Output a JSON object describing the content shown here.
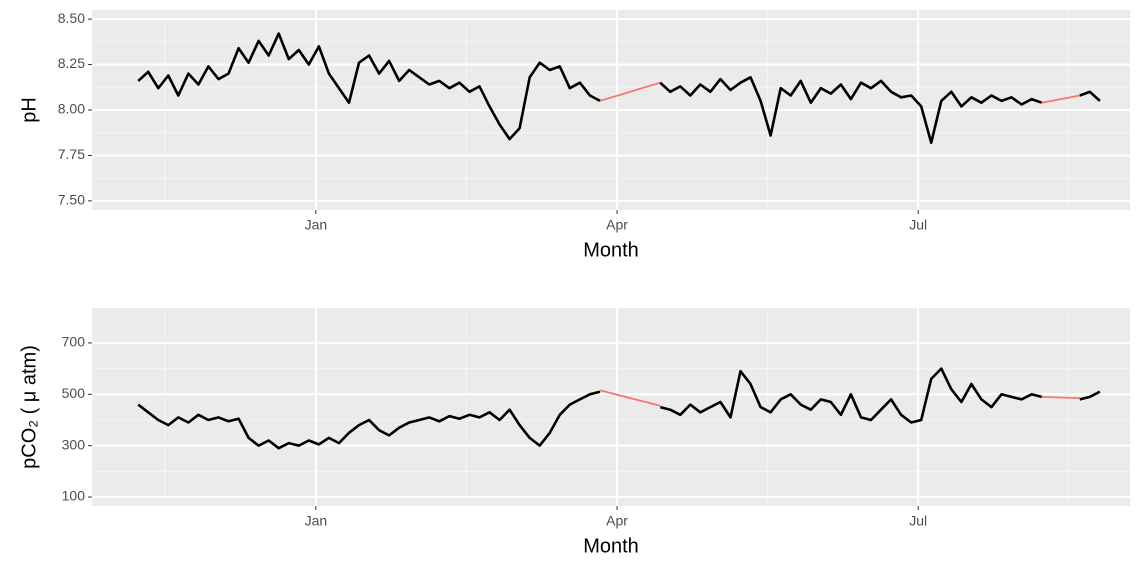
{
  "chart_data": [
    {
      "type": "line",
      "x_label": "Month",
      "y_label": "pH",
      "grid": true,
      "xlim": [
        -1.23,
        9.11
      ],
      "ylim": [
        7.45,
        8.55
      ],
      "xticks": [
        {
          "value": 1,
          "label": "Jan"
        },
        {
          "value": 4,
          "label": "Apr"
        },
        {
          "value": 7,
          "label": "Jul"
        }
      ],
      "yticks": [
        {
          "value": 7.5,
          "label": "7.50"
        },
        {
          "value": 7.75,
          "label": "7.75"
        },
        {
          "value": 8,
          "label": "8.00"
        },
        {
          "value": 8.25,
          "label": "8.25"
        },
        {
          "value": 8.5,
          "label": "8.50"
        }
      ],
      "series": [
        {
          "color": "#F8766D",
          "x": [
            3.83,
            4.43,
            6,
            8.23,
            8.61
          ],
          "values": [
            8.05,
            8.15,
            null,
            8.04,
            8.08
          ]
        },
        {
          "color": "#000000",
          "x": [
            -0.77,
            -0.67,
            -0.57,
            -0.47,
            -0.37,
            -0.27,
            -0.17,
            -0.07,
            0.03,
            0.13,
            0.23,
            0.33,
            0.43,
            0.53,
            0.63,
            0.73,
            0.83,
            0.93,
            1.03,
            1.13,
            1.23,
            1.33,
            1.43,
            1.53,
            1.63,
            1.73,
            1.83,
            1.93,
            2.03,
            2.13,
            2.23,
            2.33,
            2.43,
            2.53,
            2.63,
            2.73,
            2.83,
            2.93,
            3.03,
            3.13,
            3.23,
            3.33,
            3.43,
            3.53,
            3.63,
            3.73,
            3.83,
            4.0,
            4.43,
            4.53,
            4.63,
            4.73,
            4.83,
            4.93,
            5.03,
            5.13,
            5.23,
            5.33,
            5.43,
            5.53,
            5.63,
            5.73,
            5.83,
            5.93,
            6.03,
            6.13,
            6.23,
            6.33,
            6.43,
            6.53,
            6.63,
            6.73,
            6.83,
            6.93,
            7.03,
            7.13,
            7.23,
            7.33,
            7.43,
            7.53,
            7.63,
            7.73,
            7.83,
            7.93,
            8.03,
            8.13,
            8.23,
            8.4,
            8.61,
            8.71,
            8.81
          ],
          "values": [
            8.16,
            8.21,
            8.12,
            8.19,
            8.08,
            8.2,
            8.14,
            8.24,
            8.17,
            8.2,
            8.34,
            8.26,
            8.38,
            8.3,
            8.42,
            8.28,
            8.33,
            8.25,
            8.35,
            8.2,
            8.12,
            8.04,
            8.26,
            8.3,
            8.2,
            8.27,
            8.16,
            8.22,
            8.18,
            8.14,
            8.16,
            8.12,
            8.15,
            8.1,
            8.13,
            8.02,
            7.92,
            7.84,
            7.9,
            8.18,
            8.26,
            8.22,
            8.24,
            8.12,
            8.15,
            8.08,
            8.05,
            null,
            8.15,
            8.1,
            8.13,
            8.08,
            8.14,
            8.1,
            8.17,
            8.11,
            8.15,
            8.18,
            8.05,
            7.86,
            8.12,
            8.08,
            8.16,
            8.04,
            8.12,
            8.09,
            8.14,
            8.06,
            8.15,
            8.12,
            8.16,
            8.1,
            8.07,
            8.08,
            8.02,
            7.82,
            8.05,
            8.1,
            8.02,
            8.07,
            8.04,
            8.08,
            8.05,
            8.07,
            8.03,
            8.06,
            8.04,
            null,
            8.08,
            8.1,
            8.05
          ]
        }
      ]
    },
    {
      "type": "line",
      "x_label": "Month",
      "y_label": "pCO₂ ( μ atm)",
      "grid": true,
      "xlim": [
        -1.23,
        9.11
      ],
      "ylim": [
        65,
        836
      ],
      "xticks": [
        {
          "value": 1,
          "label": "Jan"
        },
        {
          "value": 4,
          "label": "Apr"
        },
        {
          "value": 7,
          "label": "Jul"
        }
      ],
      "yticks": [
        100,
        300,
        500,
        700
      ],
      "series": [
        {
          "color": "#F8766D",
          "x": [
            3.83,
            4.43,
            6,
            8.23,
            8.61
          ],
          "values": [
            515,
            455,
            null,
            490,
            485
          ]
        },
        {
          "color": "#000000",
          "x": [
            -0.77,
            -0.67,
            -0.57,
            -0.47,
            -0.37,
            -0.27,
            -0.17,
            -0.07,
            0.03,
            0.13,
            0.23,
            0.33,
            0.43,
            0.53,
            0.63,
            0.73,
            0.83,
            0.93,
            1.03,
            1.13,
            1.23,
            1.33,
            1.43,
            1.53,
            1.63,
            1.73,
            1.83,
            1.93,
            2.03,
            2.13,
            2.23,
            2.33,
            2.43,
            2.53,
            2.63,
            2.73,
            2.83,
            2.93,
            3.03,
            3.13,
            3.23,
            3.33,
            3.43,
            3.53,
            3.63,
            3.73,
            3.83,
            4.0,
            4.43,
            4.53,
            4.63,
            4.73,
            4.83,
            4.93,
            5.03,
            5.13,
            5.23,
            5.33,
            5.43,
            5.53,
            5.63,
            5.73,
            5.83,
            5.93,
            6.03,
            6.13,
            6.23,
            6.33,
            6.43,
            6.53,
            6.63,
            6.73,
            6.83,
            6.93,
            7.03,
            7.13,
            7.23,
            7.33,
            7.43,
            7.53,
            7.63,
            7.73,
            7.83,
            7.93,
            8.03,
            8.13,
            8.23,
            8.4,
            8.61,
            8.71,
            8.81
          ],
          "values": [
            460,
            430,
            400,
            380,
            410,
            390,
            420,
            400,
            410,
            395,
            405,
            330,
            300,
            320,
            290,
            310,
            300,
            320,
            305,
            330,
            310,
            350,
            380,
            400,
            360,
            340,
            370,
            390,
            400,
            410,
            395,
            415,
            405,
            420,
            410,
            430,
            400,
            440,
            380,
            330,
            300,
            350,
            420,
            460,
            480,
            500,
            510,
            null,
            450,
            440,
            420,
            460,
            430,
            450,
            470,
            410,
            590,
            540,
            450,
            430,
            480,
            500,
            460,
            440,
            480,
            470,
            420,
            500,
            410,
            400,
            440,
            480,
            420,
            390,
            400,
            560,
            600,
            520,
            470,
            540,
            480,
            450,
            500,
            490,
            480,
            500,
            490,
            null,
            480,
            490,
            510
          ]
        }
      ]
    }
  ]
}
